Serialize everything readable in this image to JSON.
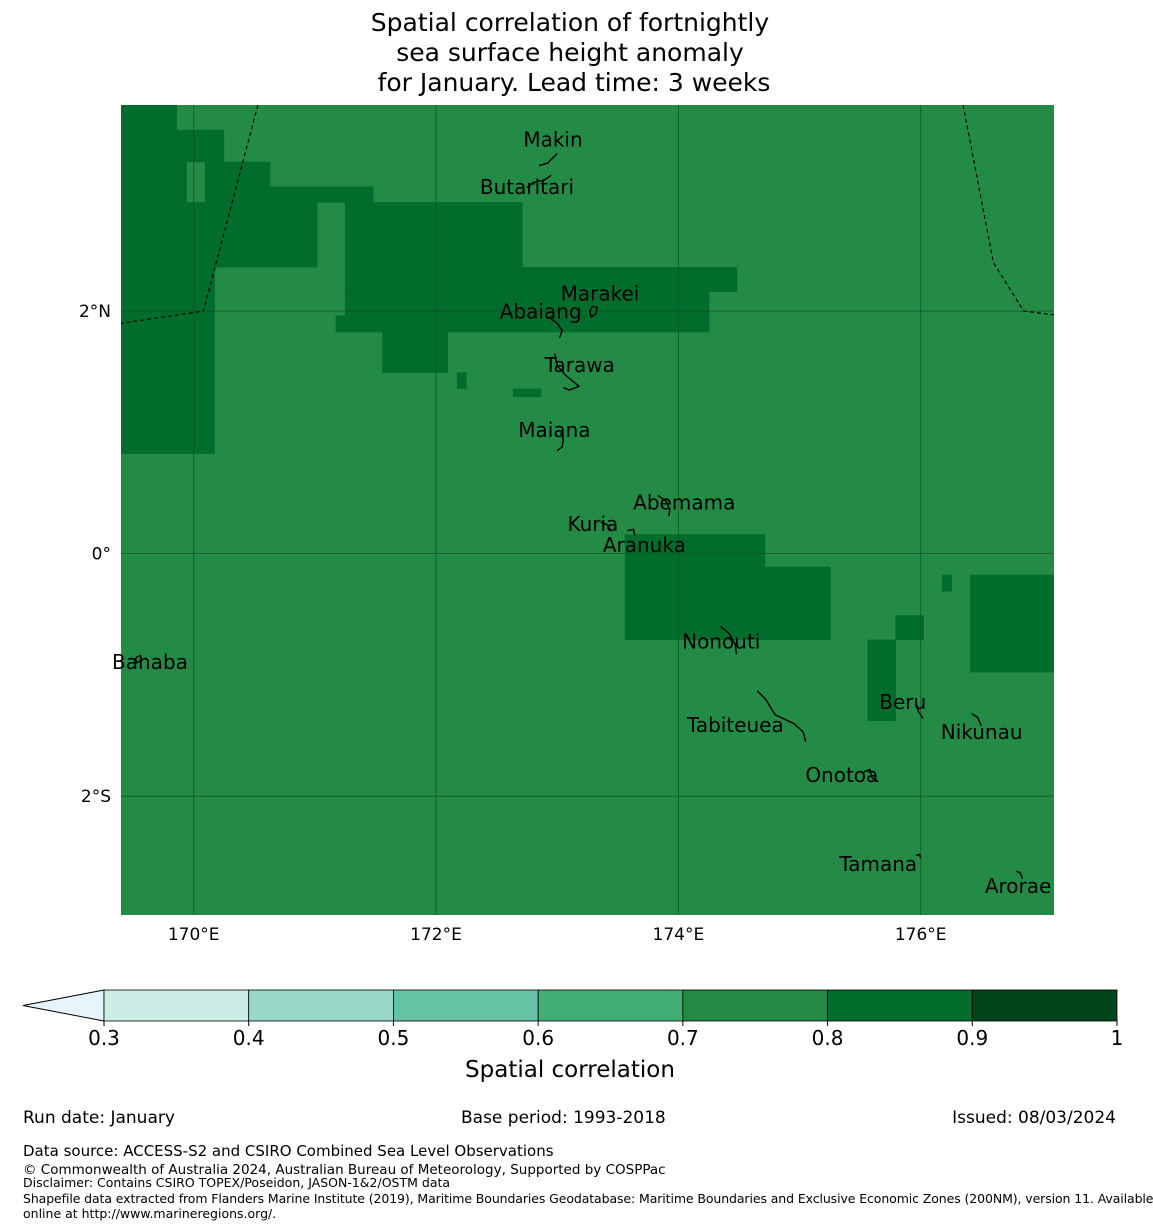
{
  "title_lines": [
    "Spatial correlation of fortnightly",
    "sea surface height anomaly",
    "for January. Lead time: 3 weeks"
  ],
  "colors": {
    "band_0.7_0.8": "#238b45",
    "band_0.8_0.9": "#006d2c",
    "band_0.9_1": "#00441b",
    "under_0.3": "#e5f5f9",
    "band_0.3_0.4": "#ccece6",
    "band_0.4_0.5": "#99d8c9",
    "band_0.5_0.6": "#66c2a4",
    "band_0.6_0.7": "#41ae76",
    "gridline": "#0c4a22",
    "coast": "#000000"
  },
  "map": {
    "lon_range": [
      169.4,
      177.1
    ],
    "lat_range": [
      -2.98,
      3.7
    ],
    "lon_ticks": [
      {
        "value": 170,
        "label": "170°E"
      },
      {
        "value": 172,
        "label": "172°E"
      },
      {
        "value": 174,
        "label": "174°E"
      },
      {
        "value": 176,
        "label": "176°E"
      }
    ],
    "lat_ticks": [
      {
        "value": 2,
        "label": "2°N"
      },
      {
        "value": 0,
        "label": "0°"
      },
      {
        "value": -2,
        "label": "2°S"
      }
    ],
    "dark_cells": [
      [
        0.0,
        0.07,
        0.0,
        0.11
      ],
      [
        0.07,
        0.12,
        0.0,
        0.07
      ],
      [
        0.07,
        0.12,
        0.09,
        0.27
      ],
      [
        0.12,
        0.43,
        0.0,
        0.1
      ],
      [
        0.12,
        0.2,
        0.1,
        0.21
      ],
      [
        0.12,
        0.2,
        0.24,
        0.43
      ],
      [
        0.2,
        0.23,
        0.24,
        0.66
      ],
      [
        0.23,
        0.26,
        0.24,
        0.63
      ],
      [
        0.26,
        0.28,
        0.23,
        0.63
      ],
      [
        0.28,
        0.33,
        0.28,
        0.35
      ],
      [
        0.33,
        0.35,
        0.36,
        0.37
      ],
      [
        0.35,
        0.36,
        0.42,
        0.45
      ],
      [
        0.53,
        0.66,
        0.54,
        0.69
      ],
      [
        0.57,
        0.66,
        0.69,
        0.76
      ],
      [
        0.66,
        0.76,
        0.8,
        0.83
      ],
      [
        0.63,
        0.66,
        0.83,
        0.86
      ],
      [
        0.58,
        0.6,
        0.88,
        0.89
      ],
      [
        0.58,
        0.7,
        0.91,
        1.0
      ]
    ],
    "light_cells": [
      [
        0.0,
        0.03,
        0.06,
        0.26
      ],
      [
        0.0,
        0.1,
        0.16,
        0.26
      ],
      [
        0.07,
        0.1,
        0.23,
        0.29
      ],
      [
        0.0,
        0.03,
        0.87,
        0.94
      ],
      [
        0.0,
        0.03,
        0.97,
        1.0
      ]
    ],
    "eez_boundaries": [
      [
        [
          170.53,
          3.7
        ],
        [
          170.08,
          2.0
        ],
        [
          169.4,
          1.9
        ]
      ],
      [
        [
          176.35,
          3.7
        ],
        [
          176.6,
          2.4
        ],
        [
          176.85,
          2.0
        ],
        [
          177.1,
          1.97
        ]
      ]
    ],
    "islands": [
      {
        "name": "Makin",
        "lon": 172.99,
        "lat": 3.29,
        "label_dx": -3,
        "label_dy": -8,
        "outline": [
          [
            172.85,
            3.2
          ],
          [
            172.92,
            3.22
          ],
          [
            172.97,
            3.27
          ],
          [
            173.0,
            3.3
          ]
        ]
      },
      {
        "name": "Butaritari",
        "lon": 172.8,
        "lat": 3.05,
        "label_dx": -6,
        "label_dy": 10,
        "outline": [
          [
            172.75,
            3.02
          ],
          [
            172.8,
            3.06
          ],
          [
            172.89,
            3.08
          ],
          [
            172.95,
            3.12
          ]
        ]
      },
      {
        "name": "Marakei",
        "lon": 173.32,
        "lat": 1.99,
        "label_dx": 4,
        "label_dy": -12,
        "outline": [
          [
            173.28,
            1.95
          ],
          [
            173.32,
            1.98
          ],
          [
            173.33,
            2.03
          ],
          [
            173.29,
            2.04
          ],
          [
            173.27,
            2.0
          ],
          [
            173.28,
            1.95
          ]
        ]
      },
      {
        "name": "Abaiang",
        "lon": 172.93,
        "lat": 1.84,
        "label_dx": -8,
        "label_dy": -12,
        "outline": [
          [
            172.93,
            1.95
          ],
          [
            173.0,
            1.9
          ],
          [
            173.04,
            1.84
          ],
          [
            173.02,
            1.78
          ]
        ]
      },
      {
        "name": "Tarawa",
        "lon": 173.12,
        "lat": 1.45,
        "label_dx": 8,
        "label_dy": -6,
        "outline": [
          [
            172.98,
            1.65
          ],
          [
            173.0,
            1.55
          ],
          [
            173.07,
            1.47
          ],
          [
            173.18,
            1.38
          ],
          [
            173.1,
            1.35
          ],
          [
            173.05,
            1.37
          ]
        ]
      },
      {
        "name": "Maiana",
        "lon": 173.01,
        "lat": 0.93,
        "label_dx": -4,
        "label_dy": -4,
        "outline": [
          [
            173.03,
            1.0
          ],
          [
            173.05,
            0.94
          ],
          [
            173.04,
            0.88
          ],
          [
            173.0,
            0.85
          ]
        ]
      },
      {
        "name": "Abemama",
        "lon": 173.9,
        "lat": 0.38,
        "label_dx": 18,
        "label_dy": 2,
        "outline": [
          [
            173.83,
            0.48
          ],
          [
            173.9,
            0.43
          ],
          [
            173.93,
            0.36
          ],
          [
            173.92,
            0.31
          ]
        ]
      },
      {
        "name": "Kuria",
        "lon": 173.41,
        "lat": 0.22,
        "label_dx": -14,
        "label_dy": 4,
        "outline": [
          [
            173.36,
            0.26
          ],
          [
            173.41,
            0.24
          ],
          [
            173.44,
            0.2
          ]
        ]
      },
      {
        "name": "Aranuka",
        "lon": 173.62,
        "lat": 0.18,
        "label_dx": 12,
        "label_dy": 20,
        "outline": [
          [
            173.58,
            0.19
          ],
          [
            173.63,
            0.2
          ],
          [
            173.64,
            0.15
          ]
        ]
      },
      {
        "name": "Nonouti",
        "lon": 174.42,
        "lat": -0.65,
        "label_dx": -8,
        "label_dy": 16,
        "outline": [
          [
            174.35,
            -0.6
          ],
          [
            174.42,
            -0.66
          ],
          [
            174.47,
            -0.75
          ],
          [
            174.48,
            -0.83
          ]
        ]
      },
      {
        "name": "Banaba",
        "lon": 169.54,
        "lat": -0.87,
        "label_dx": 12,
        "label_dy": 10,
        "outline": [
          [
            169.52,
            -0.86
          ],
          [
            169.56,
            -0.84
          ],
          [
            169.57,
            -0.88
          ],
          [
            169.53,
            -0.9
          ],
          [
            169.52,
            -0.86
          ]
        ]
      },
      {
        "name": "Tabiteuea",
        "lon": 174.8,
        "lat": -1.33,
        "label_dx": -40,
        "label_dy": 17,
        "outline": [
          [
            174.65,
            -1.13
          ],
          [
            174.72,
            -1.2
          ],
          [
            174.8,
            -1.33
          ],
          [
            174.95,
            -1.4
          ],
          [
            175.03,
            -1.47
          ],
          [
            175.05,
            -1.55
          ]
        ]
      },
      {
        "name": "Beru",
        "lon": 176.0,
        "lat": -1.33,
        "label_dx": -18,
        "label_dy": -6,
        "outline": [
          [
            175.97,
            -1.25
          ],
          [
            175.98,
            -1.3
          ],
          [
            176.02,
            -1.36
          ]
        ]
      },
      {
        "name": "Nikunau",
        "lon": 176.47,
        "lat": -1.37,
        "label_dx": 4,
        "label_dy": 19,
        "outline": [
          [
            176.42,
            -1.32
          ],
          [
            176.47,
            -1.35
          ],
          [
            176.5,
            -1.42
          ]
        ]
      },
      {
        "name": "Onotoa",
        "lon": 175.58,
        "lat": -1.8,
        "label_dx": -28,
        "label_dy": 10,
        "outline": [
          [
            175.53,
            -1.8
          ],
          [
            175.58,
            -1.78
          ],
          [
            175.6,
            -1.85
          ],
          [
            175.65,
            -1.88
          ]
        ]
      },
      {
        "name": "Tamana",
        "lon": 175.98,
        "lat": -2.5,
        "label_dx": -40,
        "label_dy": 14,
        "outline": [
          [
            175.96,
            -2.49
          ],
          [
            175.99,
            -2.48
          ],
          [
            176.0,
            -2.51
          ]
        ]
      },
      {
        "name": "Arorae",
        "lon": 176.82,
        "lat": -2.65,
        "label_dx": -2,
        "label_dy": 18,
        "outline": [
          [
            176.79,
            -2.62
          ],
          [
            176.82,
            -2.63
          ],
          [
            176.84,
            -2.68
          ]
        ]
      }
    ]
  },
  "chart_data": {
    "type": "heatmap",
    "title": "Spatial correlation of fortnightly sea surface height anomaly for January. Lead time: 3 weeks",
    "colorbar": {
      "label": "Spatial correlation",
      "ticks": [
        "0.3",
        "0.4",
        "0.5",
        "0.6",
        "0.7",
        "0.8",
        "0.9",
        "1"
      ],
      "bounds": [
        0.3,
        0.4,
        0.5,
        0.6,
        0.7,
        0.8,
        0.9,
        1.0
      ],
      "extend": "min"
    },
    "field_levels": {
      "background_range": [
        0.7,
        0.8
      ],
      "dark_range": [
        0.8,
        0.9
      ]
    },
    "xlabel": "",
    "ylabel": ""
  },
  "footer": {
    "run_date": "Run date: January",
    "base_period": "Base period: 1993-2018",
    "issued": "Issued: 08/03/2024",
    "data_source": "Data source: ACCESS-S2 and CSIRO Combined Sea Level Observations",
    "copyright": "© Commonwealth of Australia 2024, Australian Bureau of Meteorology, Supported by COSPPac",
    "disclaimer": "Disclaimer: Contains CSIRO TOPEX/Poseidon, JASON-1&2/OSTM data",
    "shapefile_1": "Shapefile data extracted from Flanders Marine Institute (2019), Maritime Boundaries Geodatabase: Maritime Boundaries and Exclusive Economic Zones (200NM), version 11. Available",
    "shapefile_2": "online at http://www.marineregions.org/."
  }
}
